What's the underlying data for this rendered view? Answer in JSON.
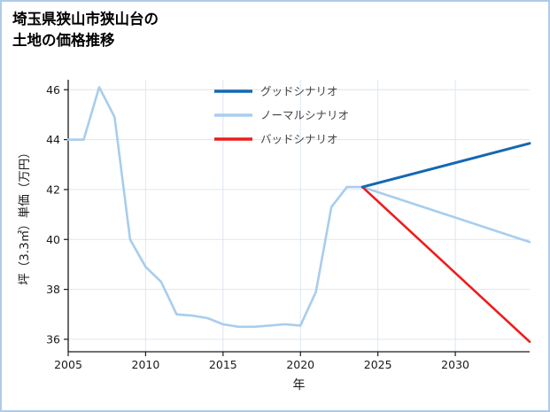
{
  "title": {
    "line1": "埼玉県狭山市狭山台の",
    "line2": "土地の価格推移"
  },
  "chart_data": {
    "type": "line",
    "title": "埼玉県狭山市狭山台の土地の価格推移",
    "xlabel": "年",
    "ylabel": "坪（3.3㎡）単価（万円）",
    "xlim": [
      2005,
      2034.8
    ],
    "ylim": [
      35.5,
      46.4
    ],
    "xticks": [
      2005,
      2010,
      2015,
      2020,
      2025,
      2030
    ],
    "yticks": [
      36,
      38,
      40,
      42,
      44,
      46
    ],
    "grid": true,
    "legend_position": "top-center",
    "style": {
      "grid_color": "#dde6f0",
      "axis_color": "#1a1a1a",
      "tick_label_color": "#1a1a1a",
      "legend_text_color": "#444444",
      "background": "#ffffff",
      "border_color": "#aecbe8"
    },
    "series": [
      {
        "id": "good",
        "name": "グッドシナリオ",
        "color": "#1468b3",
        "width": 3,
        "z": 3,
        "x": [
          2024,
          2034.8
        ],
        "y": [
          42.1,
          43.85
        ]
      },
      {
        "id": "normal",
        "name": "ノーマルシナリオ",
        "color": "#a8cdee",
        "width": 2.6,
        "z": 1,
        "x": [
          2005,
          2006,
          2007,
          2008,
          2009,
          2010,
          2011,
          2012,
          2013,
          2014,
          2015,
          2016,
          2017,
          2018,
          2019,
          2020,
          2021,
          2022,
          2023,
          2024,
          2034.8
        ],
        "y": [
          44.0,
          44.0,
          46.1,
          44.9,
          40.0,
          38.9,
          38.3,
          37.0,
          36.95,
          36.85,
          36.6,
          36.5,
          36.5,
          36.55,
          36.6,
          36.55,
          37.9,
          41.3,
          42.1,
          42.1,
          39.9
        ]
      },
      {
        "id": "bad",
        "name": "バッドシナリオ",
        "color": "#ee1c1c",
        "width": 2.6,
        "z": 2,
        "x": [
          2024,
          2034.8
        ],
        "y": [
          42.1,
          35.9
        ]
      }
    ]
  }
}
